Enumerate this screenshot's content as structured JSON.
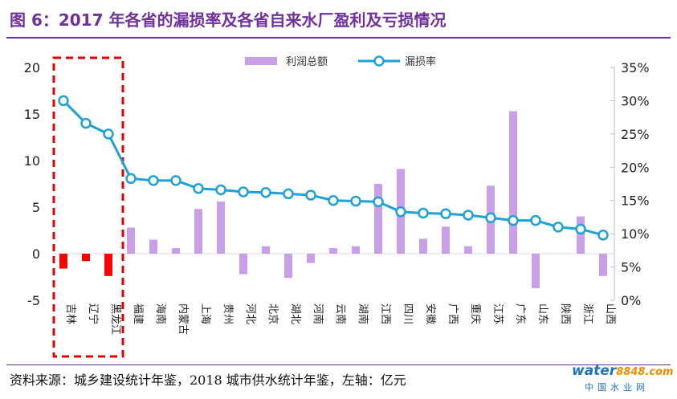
{
  "header": {
    "title": "图 6：2017 年各省的漏损率及各省自来水厂盈利及亏损情况"
  },
  "footer": {
    "source": "资料来源：城乡建设统计年鉴，2018 城市供水统计年鉴，左轴：亿元"
  },
  "logo": {
    "word": "water",
    "number": "8848",
    "suffix": ".com",
    "cn": "中国水业网"
  },
  "colors": {
    "bar": "#c9a0e8",
    "loss_bar": "#ff0000",
    "line": "#1da1d6",
    "title": "#7030a0",
    "highlight_box": "#e00000"
  },
  "chart_data": {
    "type": "bar+line",
    "categories": [
      "吉林",
      "辽宁",
      "黑龙江",
      "福建",
      "海南",
      "内蒙古",
      "上海",
      "贵州",
      "河北",
      "北京",
      "湖北",
      "河南",
      "云南",
      "湖南",
      "江西",
      "四川",
      "安徽",
      "广西",
      "重庆",
      "江苏",
      "广东",
      "山东",
      "陕西",
      "浙江",
      "山西"
    ],
    "series": [
      {
        "name": "利润总额",
        "axis": "left",
        "unit": "亿元",
        "values": [
          -1.6,
          -0.8,
          -2.4,
          2.8,
          1.5,
          0.6,
          4.8,
          5.6,
          -2.2,
          0.8,
          -2.6,
          -1.0,
          0.6,
          0.8,
          7.5,
          9.1,
          1.6,
          2.9,
          0.8,
          7.3,
          15.3,
          -3.7,
          0.0,
          4.0,
          -2.4
        ]
      },
      {
        "name": "漏损率",
        "axis": "right",
        "unit": "%",
        "values": [
          30.0,
          26.6,
          25.0,
          18.3,
          18.0,
          18.0,
          16.8,
          16.6,
          16.3,
          16.2,
          16.0,
          15.8,
          15.0,
          14.9,
          14.8,
          13.3,
          13.1,
          13.0,
          12.8,
          12.4,
          12.0,
          12.0,
          11.0,
          10.7,
          9.8
        ]
      }
    ],
    "left_axis": {
      "ylim": [
        -5,
        20
      ],
      "ticks": [
        "-5",
        "0",
        "5",
        "10",
        "15",
        "20"
      ]
    },
    "right_axis": {
      "ylim": [
        0,
        35
      ],
      "ticks": [
        "0%",
        "5%",
        "10%",
        "15%",
        "20%",
        "25%",
        "30%",
        "35%"
      ]
    },
    "legend": {
      "position": "top-center",
      "entries": [
        "利润总额",
        "漏损率"
      ]
    },
    "highlight": {
      "categories": [
        "吉林",
        "辽宁",
        "黑龙江"
      ],
      "style": "dashed-box"
    }
  }
}
